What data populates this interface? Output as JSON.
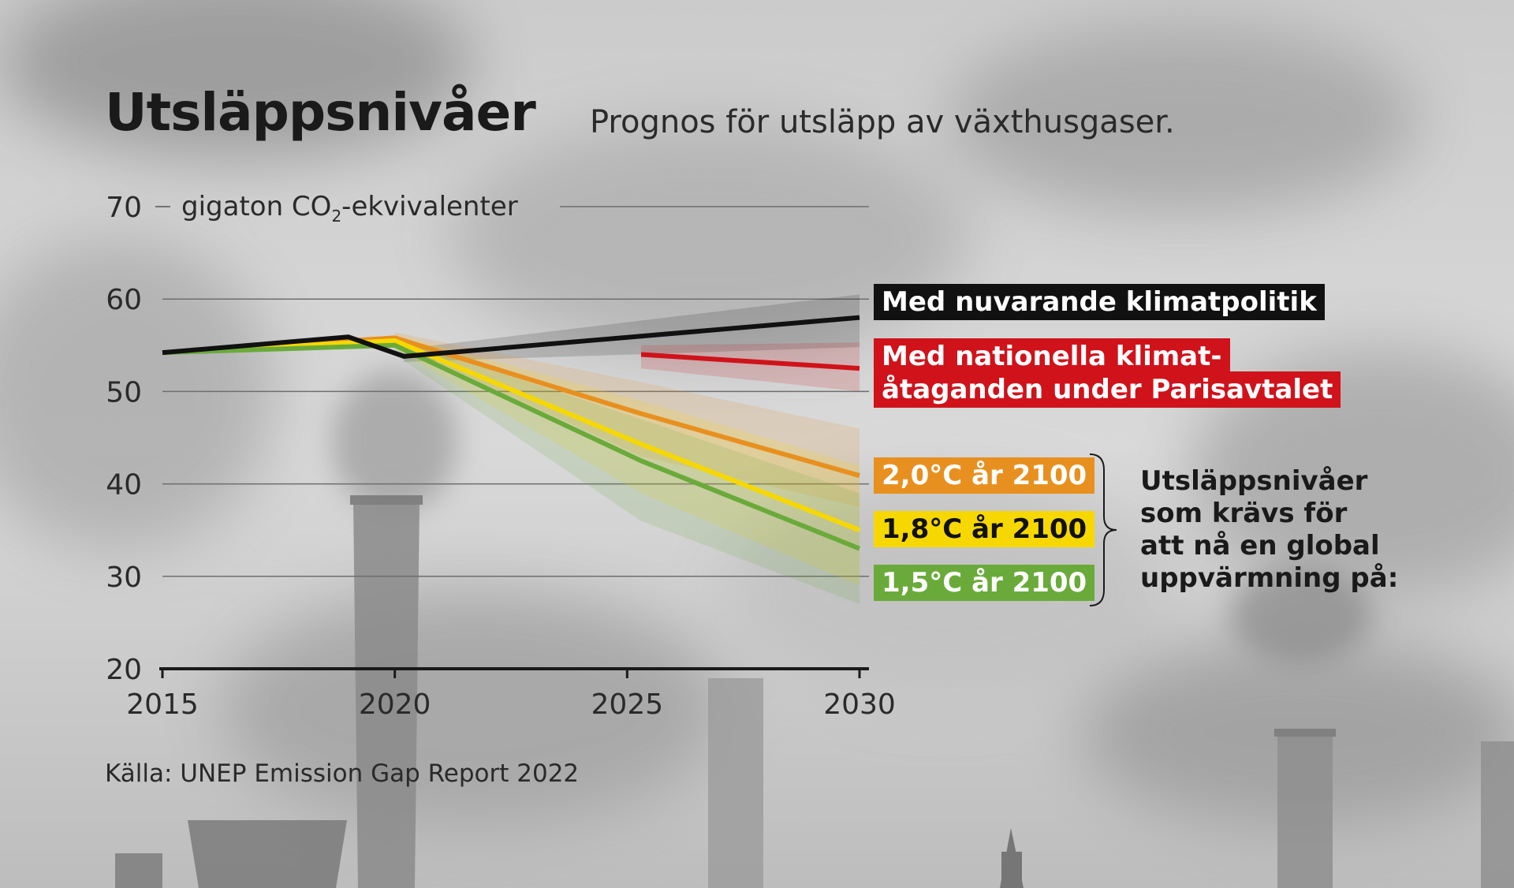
{
  "title": "Utsläppsnivåer",
  "subtitle": "Prognos för utsläpp av växthusgaser.",
  "unit_label": {
    "pre": "gigaton CO",
    "sub": "2",
    "post": "-ekvivalenter"
  },
  "source": "Källa: UNEP Emission Gap Report 2022",
  "bracket_lines": [
    "Utsläppsnivåer",
    "som krävs för",
    "att nå en global",
    "uppvärmning på:"
  ],
  "chart_data": {
    "type": "line",
    "ylim": [
      20,
      70
    ],
    "xlim": [
      2015,
      2030
    ],
    "yticks": [
      20,
      30,
      40,
      50,
      60,
      70
    ],
    "xticks": [
      2015,
      2020,
      2025,
      2030
    ],
    "grid": true,
    "series": [
      {
        "name": "Med nuvarande klimatpolitik",
        "color": "#111111",
        "x": [
          2015,
          2019,
          2020.2,
          2030
        ],
        "y": [
          54.2,
          55.9,
          53.8,
          58
        ],
        "band_x": [
          2020.2,
          2030
        ],
        "band_lo": [
          53.2,
          54.8
        ],
        "band_hi": [
          54.6,
          60.5
        ]
      },
      {
        "name": "Med nationella klimatåtaganden under Parisavtalet",
        "color": "#d0121b",
        "x": [
          2025.3,
          2030
        ],
        "y": [
          54,
          52.5
        ],
        "band_x": [
          2025.3,
          2030
        ],
        "band_lo": [
          52.5,
          50
        ],
        "band_hi": [
          55,
          55.3
        ]
      },
      {
        "name": "2,0°C år 2100",
        "color": "#e8901f",
        "x": [
          2015,
          2020,
          2025.3,
          2030
        ],
        "y": [
          54.2,
          55.8,
          47.6,
          40.9
        ],
        "band_x": [
          2020,
          2025.3,
          2030
        ],
        "band_lo": [
          55.2,
          43,
          37.5
        ],
        "band_hi": [
          56.4,
          51,
          46
        ]
      },
      {
        "name": "1,8°C år 2100",
        "color": "#f6d800",
        "x": [
          2015,
          2020,
          2025.3,
          2030
        ],
        "y": [
          54.2,
          55.5,
          44.3,
          35
        ],
        "band_x": [
          2020,
          2025.3,
          2030
        ],
        "band_lo": [
          54.6,
          39,
          29
        ],
        "band_hi": [
          56.2,
          49,
          42
        ]
      },
      {
        "name": "1,5°C år 2100",
        "color": "#6aaa3a",
        "x": [
          2015,
          2020,
          2025.3,
          2030
        ],
        "y": [
          54.2,
          55,
          42.5,
          33
        ],
        "band_x": [
          2020,
          2025.3,
          2030
        ],
        "band_lo": [
          54,
          36,
          27
        ],
        "band_hi": [
          55.8,
          47,
          39
        ]
      }
    ]
  }
}
